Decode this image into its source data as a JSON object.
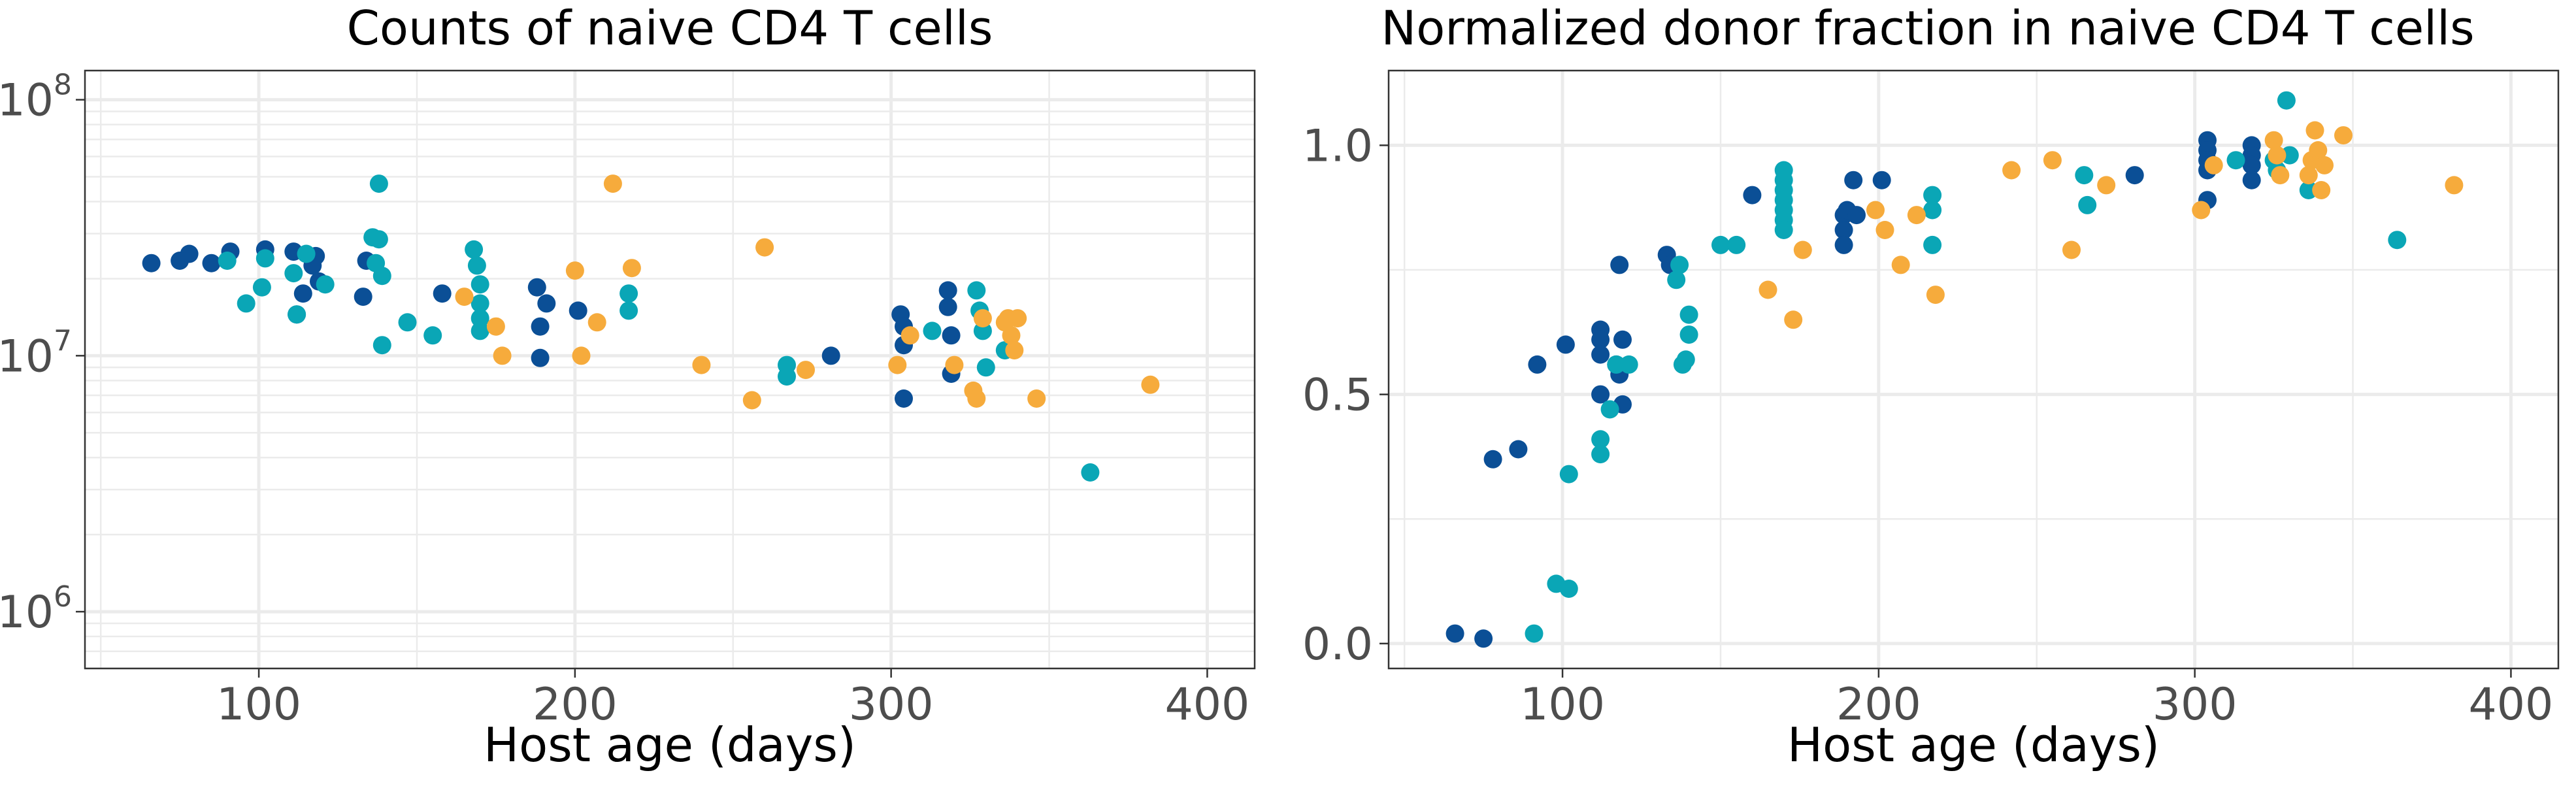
{
  "colors": {
    "dark_blue": "#0b4f96",
    "teal": "#0aa6b6",
    "orange": "#f6ab3c"
  },
  "chart_data": [
    {
      "type": "scatter",
      "title": "Counts of naive CD4 T cells",
      "xlabel": "Host age (days)",
      "ylabel": "",
      "xlim": [
        45,
        415
      ],
      "ylim": [
        600000,
        130000000
      ],
      "yscale": "log",
      "x_ticks": [
        100,
        200,
        300,
        400
      ],
      "x_tick_labels": [
        "100",
        "200",
        "300",
        "400"
      ],
      "y_ticks": [
        1000000,
        10000000,
        100000000
      ],
      "y_tick_labels": [
        "10",
        "10",
        "10"
      ],
      "y_tick_exponents": [
        "6",
        "7",
        "8"
      ],
      "grid": true,
      "legend": "none",
      "series": [
        {
          "color": "#0b4f96",
          "points": [
            [
              66,
              23000000.0
            ],
            [
              75,
              23500000.0
            ],
            [
              78,
              25000000.0
            ],
            [
              85,
              23000000.0
            ],
            [
              91,
              25500000.0
            ],
            [
              102,
              26000000.0
            ],
            [
              111,
              25500000.0
            ],
            [
              112,
              14500000.0
            ],
            [
              114,
              17500000.0
            ],
            [
              117,
              22500000.0
            ],
            [
              118,
              24500000.0
            ],
            [
              119,
              19500000.0
            ],
            [
              133,
              17000000.0
            ],
            [
              134,
              23500000.0
            ],
            [
              158,
              17500000.0
            ],
            [
              188,
              18500000.0
            ],
            [
              189,
              13000000.0
            ],
            [
              189,
              9800000.0
            ],
            [
              191,
              16000000.0
            ],
            [
              201,
              15000000.0
            ],
            [
              303,
              14500000.0
            ],
            [
              304,
              13000000.0
            ],
            [
              304,
              11000000.0
            ],
            [
              304,
              6800000.0
            ],
            [
              318,
              18000000.0
            ],
            [
              318,
              15500000.0
            ],
            [
              319,
              12000000.0
            ],
            [
              319,
              8500000.0
            ],
            [
              281,
              10000000.0
            ]
          ]
        },
        {
          "color": "#0aa6b6",
          "points": [
            [
              90,
              23500000.0
            ],
            [
              96,
              16000000.0
            ],
            [
              101,
              18500000.0
            ],
            [
              102,
              24000000.0
            ],
            [
              111,
              21000000.0
            ],
            [
              112,
              14500000.0
            ],
            [
              115,
              25000000.0
            ],
            [
              121,
              19000000.0
            ],
            [
              136,
              29000000.0
            ],
            [
              137,
              23000000.0
            ],
            [
              138,
              28500000.0
            ],
            [
              138,
              47000000.0
            ],
            [
              139,
              20500000.0
            ],
            [
              139,
              11000000.0
            ],
            [
              147,
              13500000.0
            ],
            [
              155,
              12000000.0
            ],
            [
              168,
              26000000.0
            ],
            [
              169,
              22500000.0
            ],
            [
              170,
              19000000.0
            ],
            [
              170,
              16000000.0
            ],
            [
              170,
              14000000.0
            ],
            [
              170,
              12500000.0
            ],
            [
              217,
              17500000.0
            ],
            [
              217,
              15000000.0
            ],
            [
              267,
              9200000.0
            ],
            [
              267,
              8300000.0
            ],
            [
              313,
              12500000.0
            ],
            [
              327,
              18000000.0
            ],
            [
              328,
              15000000.0
            ],
            [
              329,
              12500000.0
            ],
            [
              330,
              9000000.0
            ],
            [
              336,
              10500000.0
            ],
            [
              363,
              3500000.0
            ]
          ]
        },
        {
          "color": "#f6ab3c",
          "points": [
            [
              165,
              17000000.0
            ],
            [
              175,
              13000000.0
            ],
            [
              177,
              10000000.0
            ],
            [
              200,
              21500000.0
            ],
            [
              202,
              10000000.0
            ],
            [
              207,
              13500000.0
            ],
            [
              212,
              47000000.0
            ],
            [
              218,
              22000000.0
            ],
            [
              240,
              9200000.0
            ],
            [
              256,
              6700000.0
            ],
            [
              260,
              26500000.0
            ],
            [
              273,
              8800000.0
            ],
            [
              302,
              9200000.0
            ],
            [
              306,
              12000000.0
            ],
            [
              320,
              9200000.0
            ],
            [
              326,
              7300000.0
            ],
            [
              327,
              6800000.0
            ],
            [
              329,
              14000000.0
            ],
            [
              336,
              13500000.0
            ],
            [
              337,
              14000000.0
            ],
            [
              338,
              12000000.0
            ],
            [
              339,
              10500000.0
            ],
            [
              340,
              14000000.0
            ],
            [
              346,
              6800000.0
            ],
            [
              382,
              7700000.0
            ]
          ]
        }
      ]
    },
    {
      "type": "scatter",
      "title": "Normalized donor fraction in naive CD4 T cells",
      "xlabel": "Host age (days)",
      "ylabel": "",
      "xlim": [
        45,
        415
      ],
      "ylim": [
        -0.05,
        1.15
      ],
      "yscale": "linear",
      "x_ticks": [
        100,
        200,
        300,
        400
      ],
      "x_tick_labels": [
        "100",
        "200",
        "300",
        "400"
      ],
      "y_ticks": [
        0,
        0.5,
        1
      ],
      "y_tick_labels": [
        "0.0",
        "0.5",
        "1.0"
      ],
      "grid": true,
      "legend": "none",
      "series": [
        {
          "color": "#0b4f96",
          "points": [
            [
              66,
              0.02
            ],
            [
              75,
              0.01
            ],
            [
              78,
              0.37
            ],
            [
              86,
              0.39
            ],
            [
              92,
              0.56
            ],
            [
              101,
              0.6
            ],
            [
              112,
              0.63
            ],
            [
              112,
              0.61
            ],
            [
              112,
              0.58
            ],
            [
              112,
              0.5
            ],
            [
              117,
              0.56
            ],
            [
              118,
              0.76
            ],
            [
              118,
              0.54
            ],
            [
              119,
              0.61
            ],
            [
              119,
              0.48
            ],
            [
              133,
              0.78
            ],
            [
              134,
              0.76
            ],
            [
              160,
              0.9
            ],
            [
              189,
              0.86
            ],
            [
              189,
              0.83
            ],
            [
              189,
              0.8
            ],
            [
              190,
              0.87
            ],
            [
              192,
              0.93
            ],
            [
              193,
              0.86
            ],
            [
              201,
              0.93
            ],
            [
              281,
              0.94
            ],
            [
              304,
              1.01
            ],
            [
              304,
              0.99
            ],
            [
              304,
              0.97
            ],
            [
              304,
              0.95
            ],
            [
              304,
              0.89
            ],
            [
              318,
              1.0
            ],
            [
              318,
              0.98
            ],
            [
              318,
              0.96
            ],
            [
              318,
              0.93
            ]
          ]
        },
        {
          "color": "#0aa6b6",
          "points": [
            [
              91,
              0.02
            ],
            [
              98,
              0.12
            ],
            [
              102,
              0.34
            ],
            [
              102,
              0.11
            ],
            [
              112,
              0.41
            ],
            [
              112,
              0.38
            ],
            [
              115,
              0.47
            ],
            [
              117,
              0.56
            ],
            [
              121,
              0.56
            ],
            [
              136,
              0.73
            ],
            [
              137,
              0.76
            ],
            [
              138,
              0.56
            ],
            [
              139,
              0.57
            ],
            [
              140,
              0.62
            ],
            [
              140,
              0.66
            ],
            [
              150,
              0.8
            ],
            [
              155,
              0.8
            ],
            [
              170,
              0.95
            ],
            [
              170,
              0.93
            ],
            [
              170,
              0.91
            ],
            [
              170,
              0.89
            ],
            [
              170,
              0.87
            ],
            [
              170,
              0.85
            ],
            [
              170,
              0.83
            ],
            [
              217,
              0.9
            ],
            [
              217,
              0.87
            ],
            [
              217,
              0.8
            ],
            [
              265,
              0.94
            ],
            [
              266,
              0.88
            ],
            [
              313,
              0.97
            ],
            [
              325,
              0.97
            ],
            [
              326,
              0.95
            ],
            [
              329,
              1.09
            ],
            [
              330,
              0.98
            ],
            [
              336,
              0.91
            ],
            [
              364,
              0.81
            ]
          ]
        },
        {
          "color": "#f6ab3c",
          "points": [
            [
              165,
              0.71
            ],
            [
              173,
              0.65
            ],
            [
              176,
              0.79
            ],
            [
              199,
              0.87
            ],
            [
              202,
              0.83
            ],
            [
              207,
              0.76
            ],
            [
              212,
              0.86
            ],
            [
              218,
              0.7
            ],
            [
              242,
              0.95
            ],
            [
              255,
              0.97
            ],
            [
              261,
              0.79
            ],
            [
              272,
              0.92
            ],
            [
              302,
              0.87
            ],
            [
              306,
              0.96
            ],
            [
              325,
              1.01
            ],
            [
              326,
              0.98
            ],
            [
              327,
              0.94
            ],
            [
              336,
              0.94
            ],
            [
              337,
              0.97
            ],
            [
              338,
              1.03
            ],
            [
              339,
              0.99
            ],
            [
              340,
              0.91
            ],
            [
              341,
              0.96
            ],
            [
              347,
              1.02
            ],
            [
              382,
              0.92
            ]
          ]
        }
      ]
    }
  ]
}
